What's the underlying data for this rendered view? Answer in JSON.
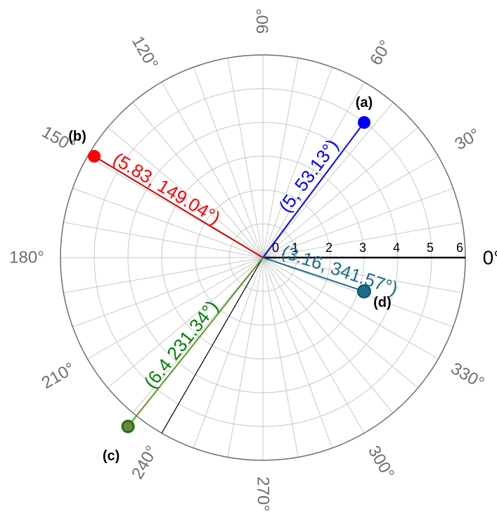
{
  "chart_data": {
    "type": "scatter",
    "coordinate_system": "polar",
    "radial_axis": {
      "range": [
        0,
        6
      ],
      "ticks": [
        "0",
        "1",
        "2",
        "3",
        "4",
        "5",
        "6"
      ]
    },
    "angular_axis": {
      "unit": "degrees",
      "grid_step": 10,
      "labels": [
        "0°",
        "30°",
        "60°",
        "90°",
        "120°",
        "150°",
        "180°",
        "210°",
        "240°",
        "270°",
        "300°",
        "330°"
      ]
    },
    "reference_ray": {
      "angle": 240
    },
    "points": [
      {
        "letter": "(a)",
        "r": 5,
        "theta": 53.13,
        "label": "(5, 53.13°)",
        "color": "#0000ff",
        "line_color": "#0000ff"
      },
      {
        "letter": "(b)",
        "r": 5.83,
        "theta": 149.04,
        "label": "(5.83, 149.04°)",
        "color": "#ff0000",
        "line_color": "#d40000"
      },
      {
        "letter": "(c)",
        "r": 6.4,
        "theta": 231.34,
        "label": "(6.4 231.34°)",
        "color": "#008000",
        "line_color": "#5a9a28"
      },
      {
        "letter": "(d)",
        "r": 3.16,
        "theta": 341.57,
        "label": "(3.16, 341.57°)",
        "color": "#1a6f8a",
        "line_color": "#1a6f8a"
      }
    ]
  }
}
